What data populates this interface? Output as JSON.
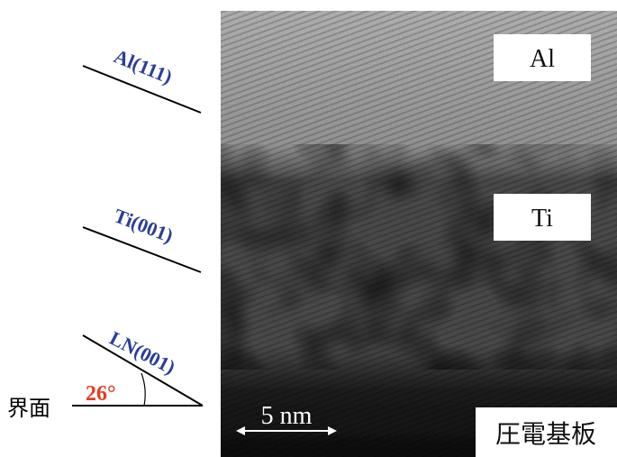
{
  "planes": {
    "al": "Al(111)",
    "ti": "Ti(001)",
    "ln": "LN(001)"
  },
  "interface": {
    "label": "界面",
    "angle": "26°"
  },
  "micrograph": {
    "al": "Al",
    "ti": "Ti",
    "substrate": "圧電基板",
    "scale": "5 nm"
  }
}
